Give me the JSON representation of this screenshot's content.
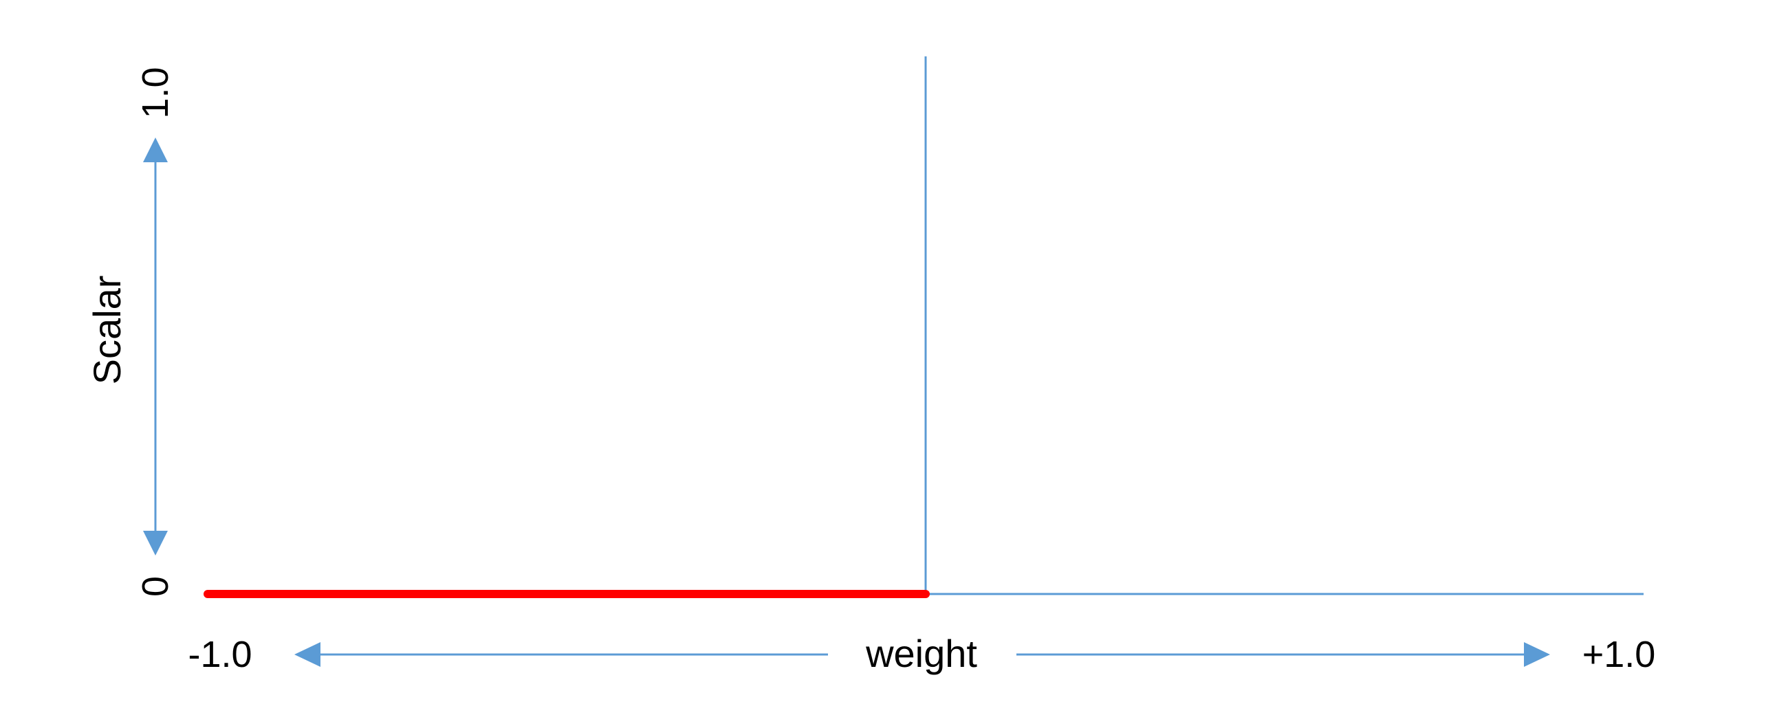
{
  "chart_data": {
    "type": "line",
    "title": "",
    "xlabel": "weight",
    "ylabel": "Scalar",
    "x_tick_labels": {
      "min": "-1.0",
      "max": "+1.0"
    },
    "y_tick_labels": {
      "min": "0",
      "max": "1.0"
    },
    "xlim": [
      -1.0,
      1.0
    ],
    "ylim": [
      0,
      1.0
    ],
    "grid": false,
    "legend": "none",
    "series": [
      {
        "x": [
          -1.0,
          0.0
        ],
        "y": [
          0,
          0
        ],
        "color": "#FF0000"
      },
      {
        "x": [
          0.0,
          0.0,
          1.0
        ],
        "y": [
          1.0,
          0,
          0
        ],
        "color": "#5B9BD5"
      }
    ],
    "colors": {
      "axis": "#5B9BD5",
      "highlight": "#FF0000"
    }
  }
}
